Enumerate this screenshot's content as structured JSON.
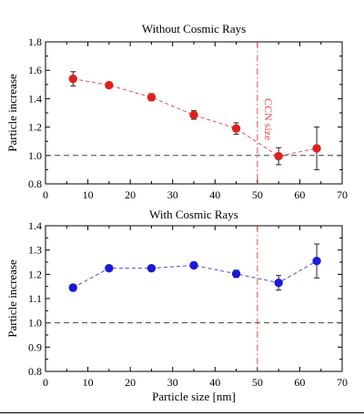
{
  "chart_data": [
    {
      "type": "scatter",
      "title": "Without Cosmic Rays",
      "xlabel": "",
      "ylabel": "Particle increase",
      "xlim": [
        0,
        70
      ],
      "ylim": [
        0.8,
        1.8
      ],
      "xticks": [
        "0",
        "10",
        "20",
        "30",
        "40",
        "50",
        "60",
        "70"
      ],
      "yticks": [
        "0.8",
        "1.0",
        "1.2",
        "1.4",
        "1.6",
        "1.8"
      ],
      "reference_line": 1.0,
      "vline": {
        "x": 50,
        "label": "CCN size",
        "color": "#e8463a"
      },
      "series": [
        {
          "color": "#e02020",
          "x": [
            6.5,
            15,
            25,
            35,
            45,
            55,
            64
          ],
          "y": [
            1.54,
            1.495,
            1.41,
            1.285,
            1.19,
            0.995,
            1.05
          ],
          "err": [
            0.05,
            0.015,
            0.025,
            0.03,
            0.04,
            0.06,
            0.15
          ]
        }
      ]
    },
    {
      "type": "scatter",
      "title": "With Cosmic Rays",
      "xlabel": "Particle size [nm]",
      "ylabel": "Particle increase",
      "xlim": [
        0,
        70
      ],
      "ylim": [
        0.8,
        1.4
      ],
      "xticks": [
        "0",
        "10",
        "20",
        "30",
        "40",
        "50",
        "60",
        "70"
      ],
      "yticks": [
        "0.8",
        "0.9",
        "1.0",
        "1.1",
        "1.2",
        "1.3",
        "1.4"
      ],
      "reference_line": 1.0,
      "vline": {
        "x": 50,
        "label": "",
        "color": "#e8463a"
      },
      "series": [
        {
          "color": "#1a1ad8",
          "x": [
            6.5,
            15,
            25,
            35,
            45,
            55,
            64
          ],
          "y": [
            1.145,
            1.225,
            1.225,
            1.237,
            1.202,
            1.165,
            1.255
          ],
          "err": [
            0.012,
            0.008,
            0.006,
            0.012,
            0.015,
            0.03,
            0.07
          ]
        }
      ]
    }
  ]
}
